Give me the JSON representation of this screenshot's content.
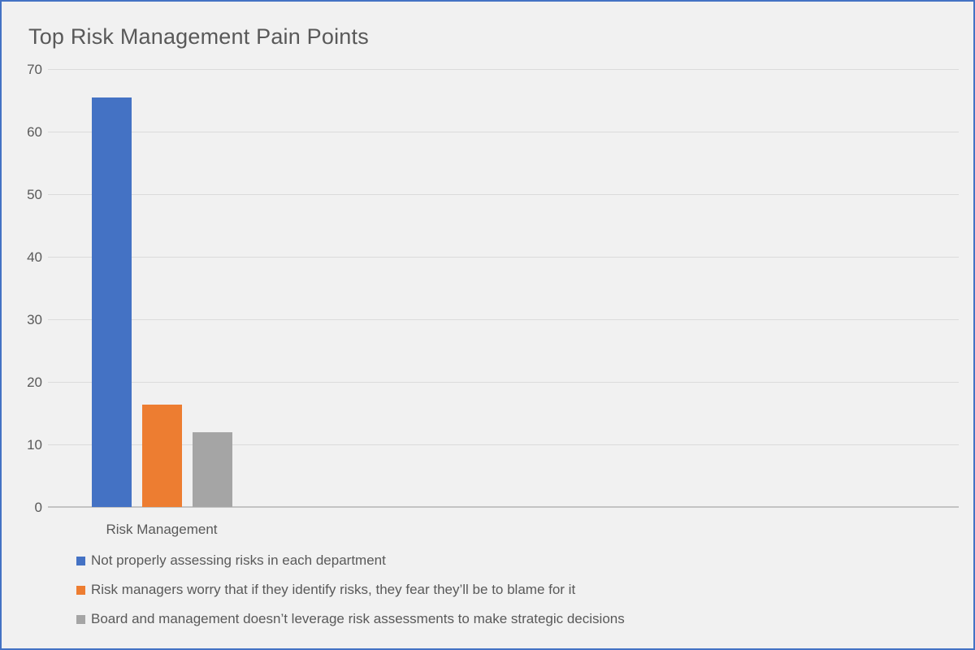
{
  "window": {
    "background_color": "#F1F1F1",
    "border_color": "#4472C4",
    "text_color": "#595959",
    "gridline_color": "#DBDBDB",
    "axis_line_color": "#C3C3C3"
  },
  "chart_data": {
    "type": "bar",
    "title": "Top Risk Management Pain Points",
    "xlabel": "",
    "ylabel": "",
    "categories": [
      "Risk Management"
    ],
    "series": [
      {
        "name": "Not properly assessing risks in each department",
        "color": "#4472C4",
        "values": [
          65.5
        ]
      },
      {
        "name": "Risk managers worry that if they identify risks, they fear they’ll be to blame for it",
        "color": "#ED7D31",
        "values": [
          16.3
        ]
      },
      {
        "name": "Board and management doesn’t leverage risk assessments to make strategic decisions",
        "color": "#A5A5A5",
        "values": [
          12
        ]
      }
    ],
    "ylim": [
      0,
      70
    ],
    "yticks": [
      0,
      10,
      20,
      30,
      40,
      50,
      60,
      70
    ],
    "grid": true,
    "legend_position": "bottom-left"
  }
}
